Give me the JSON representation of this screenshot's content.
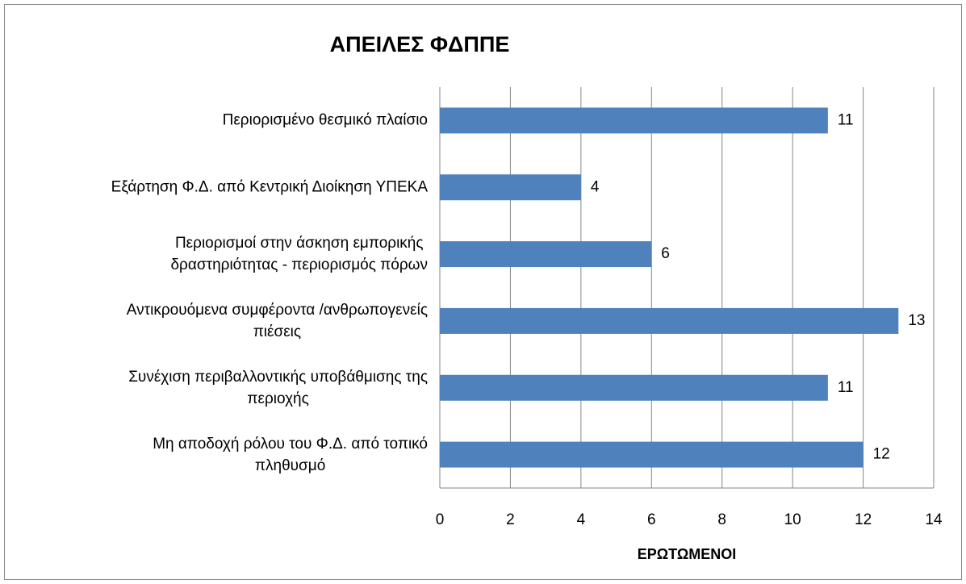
{
  "chart_data": {
    "type": "barh",
    "title": "ΑΠΕΙΛΕΣ ΦΔΠΠΕ",
    "x_label": "ΕΡΩΤΩΜΕΝΟΙ",
    "categories": [
      "Περιορισμένο θεσμικό πλαίσιο",
      "Εξάρτηση Φ.Δ. από Κεντρική Διοίκηση ΥΠΕΚΑ",
      "Περιορισμοί στην άσκηση εμπορικής\nδραστηριότητας - περιορισμός πόρων",
      "Αντικρουόμενα συμφέροντα /ανθρωπογενείς\nπιέσεις",
      "Συνέχιση περιβαλλοντικής υποβάθμισης της\nπεριοχής",
      "Μη αποδοχή ρόλου του Φ.Δ. από τοπικό\nπληθυσμό"
    ],
    "values": [
      11,
      4,
      6,
      13,
      11,
      12
    ],
    "color": "#4f81bd",
    "xlim": [
      0,
      14
    ],
    "xticks": [
      0,
      2,
      4,
      6,
      8,
      10,
      12,
      14
    ],
    "grid": true
  }
}
